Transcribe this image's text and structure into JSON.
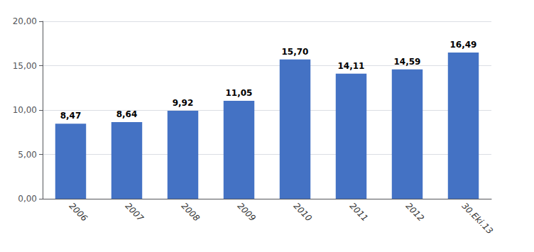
{
  "chart_data": {
    "type": "bar",
    "categories": [
      "2006",
      "2007",
      "2008",
      "2009",
      "2010",
      "2011",
      "2012",
      "30.Eki.13"
    ],
    "values": [
      8.47,
      8.64,
      9.92,
      11.05,
      15.7,
      14.11,
      14.59,
      16.49
    ],
    "value_labels": [
      "8,47",
      "8,64",
      "9,92",
      "11,05",
      "15,70",
      "14,11",
      "14,59",
      "16,49"
    ],
    "color": "#4472C4",
    "ylim": [
      0,
      20
    ],
    "yticks": [
      {
        "value": 0,
        "label": "0,00"
      },
      {
        "value": 5,
        "label": "5,00"
      },
      {
        "value": 10,
        "label": "10,00"
      },
      {
        "value": 15,
        "label": "15,00"
      },
      {
        "value": 20,
        "label": "20,00"
      }
    ],
    "grid": true,
    "data_labels": true
  }
}
